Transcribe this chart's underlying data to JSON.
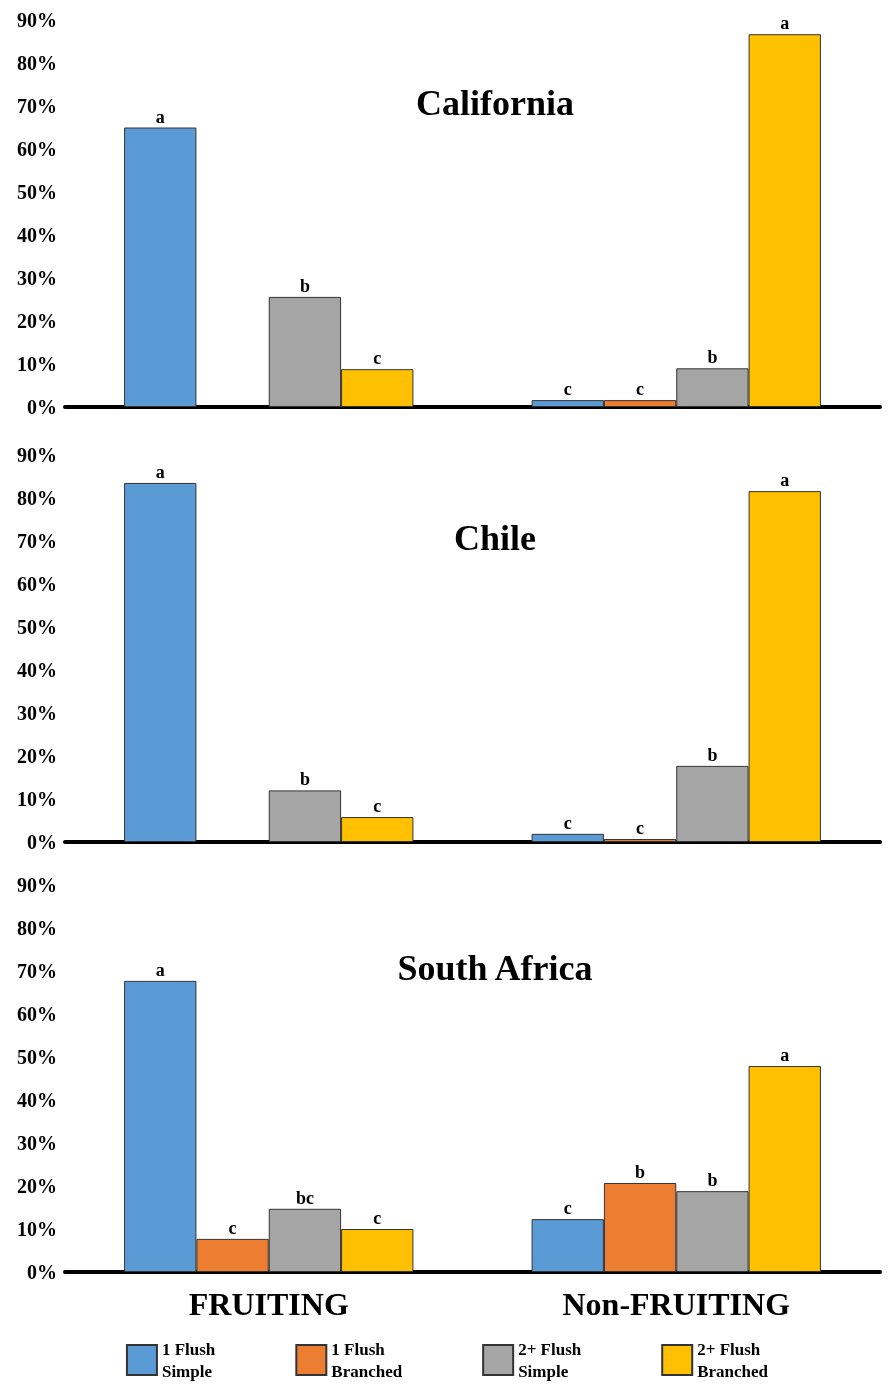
{
  "chart_data": [
    {
      "type": "bar",
      "title": "California",
      "categories": [
        null,
        null
      ],
      "ylim": [
        0,
        90
      ],
      "yticks": [
        {
          "value": 0,
          "label": "0%"
        },
        {
          "value": 10,
          "label": "10%"
        },
        {
          "value": 20,
          "label": "20%"
        },
        {
          "value": 30,
          "label": "30%"
        },
        {
          "value": 40,
          "label": "40%"
        },
        {
          "value": 50,
          "label": "50%"
        },
        {
          "value": 60,
          "label": "60%"
        },
        {
          "value": 70,
          "label": "70%"
        },
        {
          "value": 80,
          "label": "80%"
        },
        {
          "value": 90,
          "label": "90%"
        }
      ],
      "grid": false,
      "legend": false,
      "tick_labels": "y",
      "series": [
        {
          "color": "#5b9bd5",
          "values": [
            65,
            1.6
          ],
          "value_labels": [
            "a",
            "c"
          ]
        },
        {
          "color": "#ed7d31",
          "values": [
            null,
            1.6
          ],
          "value_labels": [
            null,
            "c"
          ]
        },
        {
          "color": "#a5a5a5",
          "values": [
            25.6,
            9
          ],
          "value_labels": [
            "b",
            "b"
          ]
        },
        {
          "color": "#ffc000",
          "values": [
            8.8,
            86.7
          ],
          "value_labels": [
            "c",
            "a"
          ]
        }
      ]
    },
    {
      "type": "bar",
      "title": "Chile",
      "categories": [
        null,
        null
      ],
      "ylim": [
        0,
        90
      ],
      "yticks": [
        {
          "value": 0,
          "label": "0%"
        },
        {
          "value": 10,
          "label": "10%"
        },
        {
          "value": 20,
          "label": "20%"
        },
        {
          "value": 30,
          "label": "30%"
        },
        {
          "value": 40,
          "label": "40%"
        },
        {
          "value": 50,
          "label": "50%"
        },
        {
          "value": 60,
          "label": "60%"
        },
        {
          "value": 70,
          "label": "70%"
        },
        {
          "value": 80,
          "label": "80%"
        },
        {
          "value": 90,
          "label": "90%"
        }
      ],
      "grid": false,
      "legend": false,
      "tick_labels": "y",
      "series": [
        {
          "color": "#5b9bd5",
          "values": [
            83.5,
            1.9
          ],
          "value_labels": [
            "a",
            "c"
          ]
        },
        {
          "color": "#ed7d31",
          "values": [
            null,
            0.7
          ],
          "value_labels": [
            null,
            "c"
          ]
        },
        {
          "color": "#a5a5a5",
          "values": [
            12,
            17.7
          ],
          "value_labels": [
            "b",
            "b"
          ]
        },
        {
          "color": "#ffc000",
          "values": [
            5.8,
            81.6
          ],
          "value_labels": [
            "c",
            "a"
          ]
        }
      ]
    },
    {
      "type": "bar",
      "title": "South Africa",
      "categories": [
        "FRUITING",
        "Non-FRUITING"
      ],
      "ylim": [
        0,
        90
      ],
      "yticks": [
        {
          "value": 0,
          "label": "0%"
        },
        {
          "value": 10,
          "label": "10%"
        },
        {
          "value": 20,
          "label": "20%"
        },
        {
          "value": 30,
          "label": "30%"
        },
        {
          "value": 40,
          "label": "40%"
        },
        {
          "value": 50,
          "label": "50%"
        },
        {
          "value": 60,
          "label": "60%"
        },
        {
          "value": 70,
          "label": "70%"
        },
        {
          "value": 80,
          "label": "80%"
        },
        {
          "value": 90,
          "label": "90%"
        }
      ],
      "grid": false,
      "legend": "bottom",
      "series": [
        {
          "name": "1 Flush Simple",
          "color": "#5b9bd5",
          "values": [
            67.7,
            12.3
          ],
          "value_labels": [
            "a",
            "c"
          ]
        },
        {
          "name": "1 Flush Branched",
          "color": "#ed7d31",
          "values": [
            7.7,
            20.7
          ],
          "value_labels": [
            "c",
            "b"
          ]
        },
        {
          "name": "2+ Flush Simple",
          "color": "#a5a5a5",
          "values": [
            14.7,
            18.8
          ],
          "value_labels": [
            "bc",
            "b"
          ]
        },
        {
          "name": "2+ Flush Branched",
          "color": "#ffc000",
          "values": [
            10,
            47.9
          ],
          "value_labels": [
            "c",
            "a"
          ]
        }
      ]
    }
  ]
}
